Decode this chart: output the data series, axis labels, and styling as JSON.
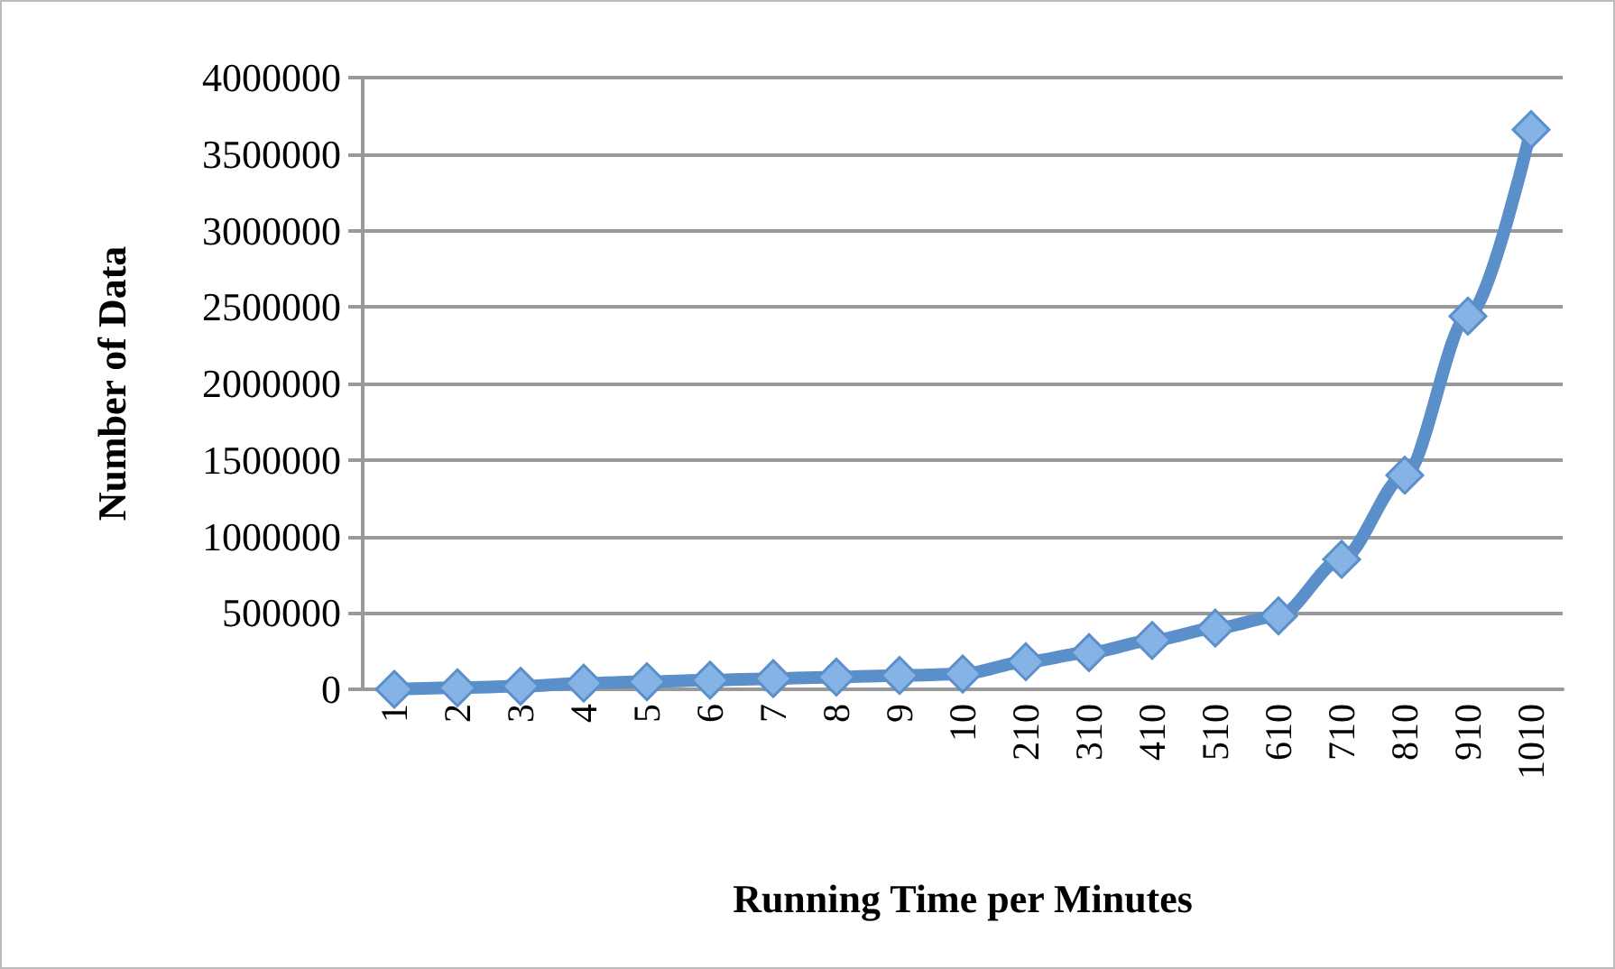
{
  "chart_data": {
    "type": "line",
    "xlabel": "Running Time per Minutes",
    "ylabel": "Number of Data",
    "categories": [
      "1",
      "2",
      "3",
      "4",
      "5",
      "6",
      "7",
      "8",
      "9",
      "10",
      "210",
      "310",
      "410",
      "510",
      "610",
      "710",
      "810",
      "910",
      "1010"
    ],
    "series": [
      {
        "color": "#5b8fc9",
        "values": [
          0,
          10000,
          20000,
          40000,
          50000,
          60000,
          70000,
          80000,
          90000,
          100000,
          180000,
          240000,
          320000,
          400000,
          480000,
          850000,
          1400000,
          2440000,
          3660000
        ]
      }
    ],
    "ylim": [
      0,
      4000000
    ],
    "yticks": [
      0,
      500000,
      1000000,
      1500000,
      2000000,
      2500000,
      3000000,
      3500000,
      4000000
    ],
    "grid": "y",
    "marker": "diamond",
    "line_style": "solid"
  }
}
